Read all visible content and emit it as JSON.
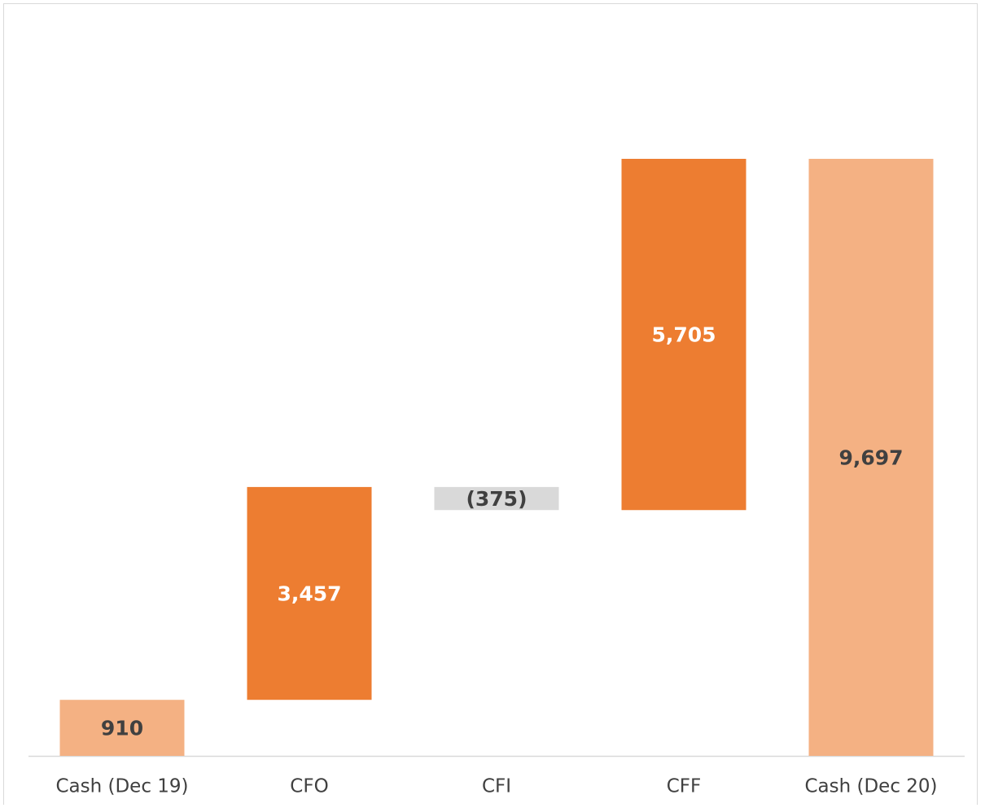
{
  "chart_data": {
    "type": "waterfall",
    "categories": [
      "Cash (Dec 19)",
      "CFO",
      "CFI",
      "CFF",
      "Cash (Dec 20)"
    ],
    "values": [
      910,
      3457,
      -375,
      5705,
      9697
    ],
    "value_labels": [
      "910",
      "3,457",
      "(375)",
      "5,705",
      "9,697"
    ],
    "colors": [
      "#f4b183",
      "#ed7d31",
      "#d9d9d9",
      "#ed7d31",
      "#f4b183"
    ]
  }
}
